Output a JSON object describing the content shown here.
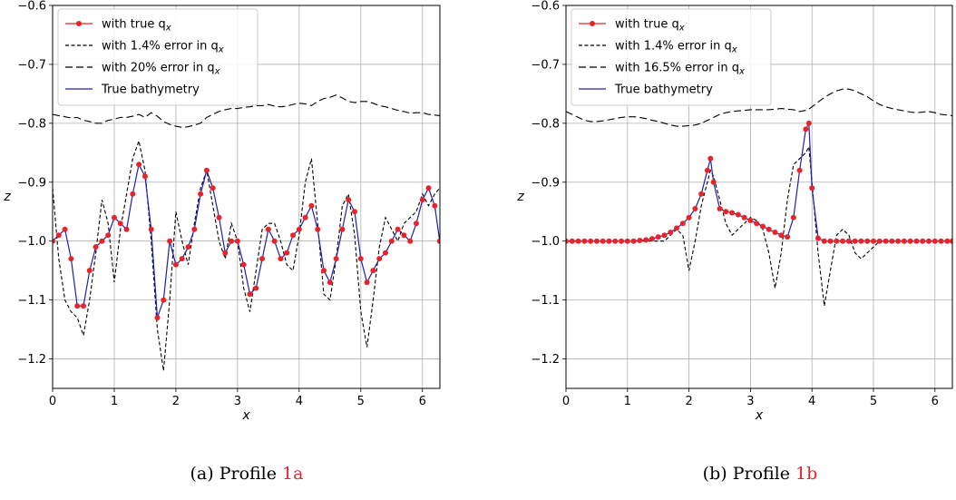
{
  "chart_data": [
    {
      "type": "line",
      "caption": "(a) Profile",
      "caption_ref": "1a",
      "xlabel": "x",
      "ylabel": "z",
      "xlim": [
        0,
        6.2832
      ],
      "ylim": [
        -1.25,
        -0.6
      ],
      "xticks": [
        "0",
        "1",
        "2",
        "3",
        "4",
        "5",
        "6"
      ],
      "yticks": [
        "−0.6",
        "−0.7",
        "−0.8",
        "−0.9",
        "−1.0",
        "−1.1",
        "−1.2"
      ],
      "grid": true,
      "legend_position": "top-left",
      "legend": [
        "with true q",
        "with 1.4% error in q",
        "with 20% error in q",
        "True bathymetry"
      ],
      "legend_sub": "x",
      "x": [
        0,
        0.1,
        0.2,
        0.3,
        0.4,
        0.5,
        0.6,
        0.7,
        0.8,
        0.9,
        1.0,
        1.1,
        1.2,
        1.3,
        1.4,
        1.5,
        1.6,
        1.7,
        1.8,
        1.9,
        2.0,
        2.1,
        2.2,
        2.3,
        2.4,
        2.5,
        2.6,
        2.7,
        2.8,
        2.9,
        3.0,
        3.1,
        3.2,
        3.3,
        3.4,
        3.5,
        3.6,
        3.7,
        3.8,
        3.9,
        4.0,
        4.1,
        4.2,
        4.3,
        4.4,
        4.5,
        4.6,
        4.7,
        4.8,
        4.9,
        5.0,
        5.1,
        5.2,
        5.3,
        5.4,
        5.5,
        5.6,
        5.7,
        5.8,
        5.9,
        6.0,
        6.1,
        6.2,
        6.28
      ],
      "series": [
        {
          "name": "with true q",
          "style": "dots",
          "color": "#e8242a",
          "values": [
            -1.0,
            -0.99,
            -0.98,
            -1.03,
            -1.11,
            -1.11,
            -1.05,
            -1.01,
            -1.0,
            -0.99,
            -0.96,
            -0.97,
            -0.98,
            -0.92,
            -0.87,
            -0.89,
            -0.98,
            -1.13,
            -1.1,
            -1.0,
            -1.04,
            -1.03,
            -1.01,
            -0.98,
            -0.92,
            -0.88,
            -0.91,
            -0.96,
            -1.02,
            -1.0,
            -1.0,
            -1.04,
            -1.09,
            -1.08,
            -1.03,
            -0.98,
            -1.0,
            -1.03,
            -1.02,
            -0.99,
            -0.98,
            -0.96,
            -0.94,
            -0.98,
            -1.05,
            -1.07,
            -1.03,
            -0.98,
            -0.93,
            -0.95,
            -1.03,
            -1.07,
            -1.05,
            -1.03,
            -1.02,
            -1.0,
            -0.98,
            -0.99,
            -1.0,
            -0.97,
            -0.93,
            -0.91,
            -0.94,
            -1.0
          ]
        },
        {
          "name": "with 1.4% error in q",
          "style": "short-dash",
          "color": "#000000",
          "values": [
            -0.91,
            -1.03,
            -1.1,
            -1.12,
            -1.13,
            -1.16,
            -1.1,
            -1.02,
            -0.93,
            -0.97,
            -1.07,
            -0.98,
            -0.92,
            -0.86,
            -0.83,
            -0.88,
            -1.0,
            -1.15,
            -1.22,
            -1.1,
            -0.95,
            -1.0,
            -1.04,
            -0.97,
            -0.91,
            -0.88,
            -0.94,
            -1.0,
            -1.03,
            -0.97,
            -1.0,
            -1.08,
            -1.12,
            -1.05,
            -0.98,
            -0.97,
            -0.97,
            -1.0,
            -1.04,
            -1.05,
            -0.99,
            -0.9,
            -0.86,
            -0.97,
            -1.09,
            -1.1,
            -1.03,
            -0.94,
            -0.92,
            -0.99,
            -1.12,
            -1.18,
            -1.1,
            -1.01,
            -0.96,
            -0.98,
            -1.0,
            -0.97,
            -0.96,
            -0.95,
            -0.92,
            -0.94,
            -0.92,
            -0.91
          ]
        },
        {
          "name": "with 20% error in q",
          "style": "long-dash",
          "color": "#000000",
          "values": [
            -0.785,
            -0.787,
            -0.789,
            -0.791,
            -0.79,
            -0.795,
            -0.797,
            -0.8,
            -0.8,
            -0.795,
            -0.793,
            -0.79,
            -0.79,
            -0.788,
            -0.785,
            -0.79,
            -0.782,
            -0.788,
            -0.797,
            -0.802,
            -0.805,
            -0.807,
            -0.806,
            -0.803,
            -0.8,
            -0.79,
            -0.785,
            -0.78,
            -0.777,
            -0.775,
            -0.775,
            -0.773,
            -0.772,
            -0.77,
            -0.77,
            -0.768,
            -0.771,
            -0.772,
            -0.771,
            -0.768,
            -0.766,
            -0.767,
            -0.77,
            -0.763,
            -0.758,
            -0.756,
            -0.752,
            -0.757,
            -0.763,
            -0.765,
            -0.763,
            -0.763,
            -0.766,
            -0.77,
            -0.772,
            -0.775,
            -0.778,
            -0.78,
            -0.783,
            -0.782,
            -0.782,
            -0.785,
            -0.786,
            -0.787
          ]
        },
        {
          "name": "True bathymetry",
          "style": "solid",
          "color": "#1f1fb4",
          "values": [
            -1.0,
            -0.99,
            -0.98,
            -1.03,
            -1.11,
            -1.11,
            -1.05,
            -1.01,
            -1.0,
            -0.99,
            -0.96,
            -0.97,
            -0.98,
            -0.92,
            -0.87,
            -0.89,
            -0.98,
            -1.13,
            -1.1,
            -1.0,
            -1.04,
            -1.03,
            -1.01,
            -0.98,
            -0.92,
            -0.88,
            -0.91,
            -0.96,
            -1.02,
            -1.0,
            -1.0,
            -1.04,
            -1.09,
            -1.08,
            -1.03,
            -0.98,
            -1.0,
            -1.03,
            -1.02,
            -0.99,
            -0.98,
            -0.96,
            -0.94,
            -0.98,
            -1.05,
            -1.07,
            -1.03,
            -0.98,
            -0.93,
            -0.95,
            -1.03,
            -1.07,
            -1.05,
            -1.03,
            -1.02,
            -1.0,
            -0.98,
            -0.99,
            -1.0,
            -0.97,
            -0.93,
            -0.91,
            -0.94,
            -1.0
          ]
        }
      ]
    },
    {
      "type": "line",
      "caption": "(b) Profile",
      "caption_ref": "1b",
      "xlabel": "x",
      "ylabel": "z",
      "xlim": [
        0,
        6.2832
      ],
      "ylim": [
        -1.25,
        -0.6
      ],
      "xticks": [
        "0",
        "1",
        "2",
        "3",
        "4",
        "5",
        "6"
      ],
      "yticks": [
        "−0.6",
        "−0.7",
        "−0.8",
        "−0.9",
        "−1.0",
        "−1.1",
        "−1.2"
      ],
      "grid": true,
      "legend_position": "top-left",
      "legend": [
        "with true q",
        "with 1.4% error in q",
        "with 16.5% error in q",
        "True bathymetry"
      ],
      "legend_sub": "x",
      "x": [
        0,
        0.1,
        0.2,
        0.3,
        0.4,
        0.5,
        0.6,
        0.7,
        0.8,
        0.9,
        1.0,
        1.1,
        1.2,
        1.3,
        1.4,
        1.5,
        1.6,
        1.7,
        1.8,
        1.9,
        2.0,
        2.1,
        2.2,
        2.3,
        2.35,
        2.4,
        2.5,
        2.6,
        2.7,
        2.8,
        2.9,
        3.0,
        3.1,
        3.2,
        3.3,
        3.4,
        3.5,
        3.6,
        3.7,
        3.8,
        3.9,
        3.95,
        4.0,
        4.1,
        4.2,
        4.3,
        4.4,
        4.5,
        4.6,
        4.7,
        4.8,
        4.9,
        5.0,
        5.1,
        5.2,
        5.3,
        5.4,
        5.5,
        5.6,
        5.7,
        5.8,
        5.9,
        6.0,
        6.1,
        6.2,
        6.28
      ],
      "series": [
        {
          "name": "with true q",
          "style": "dots",
          "color": "#e8242a",
          "values": [
            -1.0,
            -1.0,
            -1.0,
            -1.0,
            -1.0,
            -1.0,
            -1.0,
            -1.0,
            -1.0,
            -1.0,
            -1.0,
            -1.0,
            -0.999,
            -0.998,
            -0.996,
            -0.993,
            -0.99,
            -0.985,
            -0.978,
            -0.97,
            -0.96,
            -0.945,
            -0.92,
            -0.88,
            -0.86,
            -0.9,
            -0.945,
            -0.95,
            -0.952,
            -0.955,
            -0.96,
            -0.965,
            -0.97,
            -0.975,
            -0.98,
            -0.985,
            -0.99,
            -0.993,
            -0.96,
            -0.88,
            -0.81,
            -0.8,
            -0.91,
            -0.995,
            -1.0,
            -1.0,
            -1.0,
            -1.0,
            -1.0,
            -1.0,
            -1.0,
            -1.0,
            -1.0,
            -1.0,
            -1.0,
            -1.0,
            -1.0,
            -1.0,
            -1.0,
            -1.0,
            -1.0,
            -1.0,
            -1.0,
            -1.0,
            -1.0,
            -1.0
          ]
        },
        {
          "name": "with 1.4% error in q",
          "style": "short-dash",
          "color": "#000000",
          "values": [
            -1.0,
            -1.0,
            -1.0,
            -1.0,
            -1.0,
            -1.0,
            -1.0,
            -1.0,
            -1.0,
            -1.0,
            -1.0,
            -1.0,
            -1.0,
            -1.0,
            -1.0,
            -1.0,
            -1.0,
            -0.99,
            -0.98,
            -0.99,
            -1.05,
            -1.0,
            -0.94,
            -0.9,
            -0.88,
            -0.89,
            -0.93,
            -0.97,
            -0.99,
            -0.98,
            -0.97,
            -0.96,
            -0.965,
            -0.98,
            -1.02,
            -1.08,
            -1.02,
            -0.93,
            -0.87,
            -0.86,
            -0.85,
            -0.84,
            -0.9,
            -1.02,
            -1.11,
            -1.05,
            -0.99,
            -0.98,
            -0.99,
            -1.02,
            -1.03,
            -1.02,
            -1.01,
            -1.0,
            -1.0,
            -1.0,
            -1.0,
            -1.0,
            -1.0,
            -1.0,
            -1.0,
            -1.0,
            -1.0,
            -1.0,
            -1.0,
            -1.0
          ]
        },
        {
          "name": "with 16.5% error in q",
          "style": "long-dash",
          "color": "#000000",
          "values": [
            -0.78,
            -0.785,
            -0.79,
            -0.795,
            -0.797,
            -0.797,
            -0.796,
            -0.794,
            -0.792,
            -0.79,
            -0.789,
            -0.789,
            -0.79,
            -0.792,
            -0.795,
            -0.797,
            -0.8,
            -0.803,
            -0.805,
            -0.805,
            -0.804,
            -0.803,
            -0.8,
            -0.795,
            -0.793,
            -0.79,
            -0.785,
            -0.782,
            -0.78,
            -0.779,
            -0.778,
            -0.777,
            -0.777,
            -0.777,
            -0.777,
            -0.776,
            -0.775,
            -0.776,
            -0.777,
            -0.78,
            -0.778,
            -0.776,
            -0.772,
            -0.764,
            -0.756,
            -0.75,
            -0.745,
            -0.742,
            -0.742,
            -0.745,
            -0.75,
            -0.755,
            -0.762,
            -0.768,
            -0.772,
            -0.775,
            -0.777,
            -0.779,
            -0.781,
            -0.782,
            -0.781,
            -0.78,
            -0.782,
            -0.785,
            -0.786,
            -0.787
          ]
        },
        {
          "name": "True bathymetry",
          "style": "solid",
          "color": "#1f1fb4",
          "values": [
            -1.0,
            -1.0,
            -1.0,
            -1.0,
            -1.0,
            -1.0,
            -1.0,
            -1.0,
            -1.0,
            -1.0,
            -1.0,
            -1.0,
            -0.999,
            -0.998,
            -0.996,
            -0.993,
            -0.99,
            -0.985,
            -0.978,
            -0.97,
            -0.96,
            -0.945,
            -0.92,
            -0.88,
            -0.86,
            -0.9,
            -0.945,
            -0.95,
            -0.952,
            -0.955,
            -0.96,
            -0.965,
            -0.97,
            -0.975,
            -0.98,
            -0.985,
            -0.99,
            -0.993,
            -0.96,
            -0.88,
            -0.81,
            -0.8,
            -0.91,
            -0.995,
            -1.0,
            -1.0,
            -1.0,
            -1.0,
            -1.0,
            -1.0,
            -1.0,
            -1.0,
            -1.0,
            -1.0,
            -1.0,
            -1.0,
            -1.0,
            -1.0,
            -1.0,
            -1.0,
            -1.0,
            -1.0,
            -1.0,
            -1.0,
            -1.0,
            -1.0
          ]
        }
      ]
    }
  ]
}
